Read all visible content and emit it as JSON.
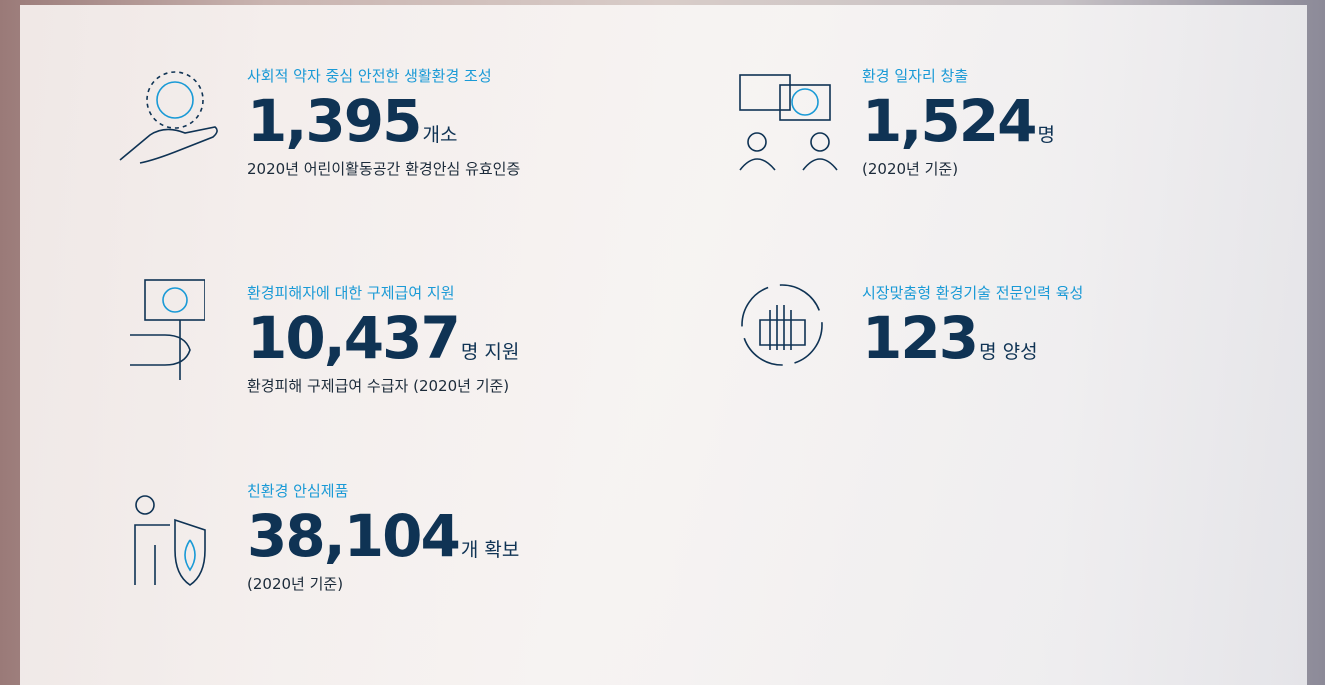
{
  "items": [
    {
      "caption": "사회적 약자 중심 안전한 생활환경 조성",
      "number": "1,395",
      "unit": "개소",
      "sub": "2020년 어린이활동공간 환경안심 유효인증"
    },
    {
      "caption": "환경 일자리 창출",
      "number": "1,524",
      "unit": "명",
      "sub": "(2020년 기준)"
    },
    {
      "caption": "환경피해자에 대한 구제급여 지원",
      "number": "10,437",
      "unit": "명 지원",
      "sub": "환경피해 구제급여 수급자 (2020년 기준)"
    },
    {
      "caption": "시장맞춤형 환경기술 전문인력 육성",
      "number": "123",
      "unit": "명 양성"
    },
    {
      "caption": "친환경 안심제품",
      "number": "38,104",
      "unit": "개 확보",
      "sub": "(2020년 기준)"
    }
  ]
}
